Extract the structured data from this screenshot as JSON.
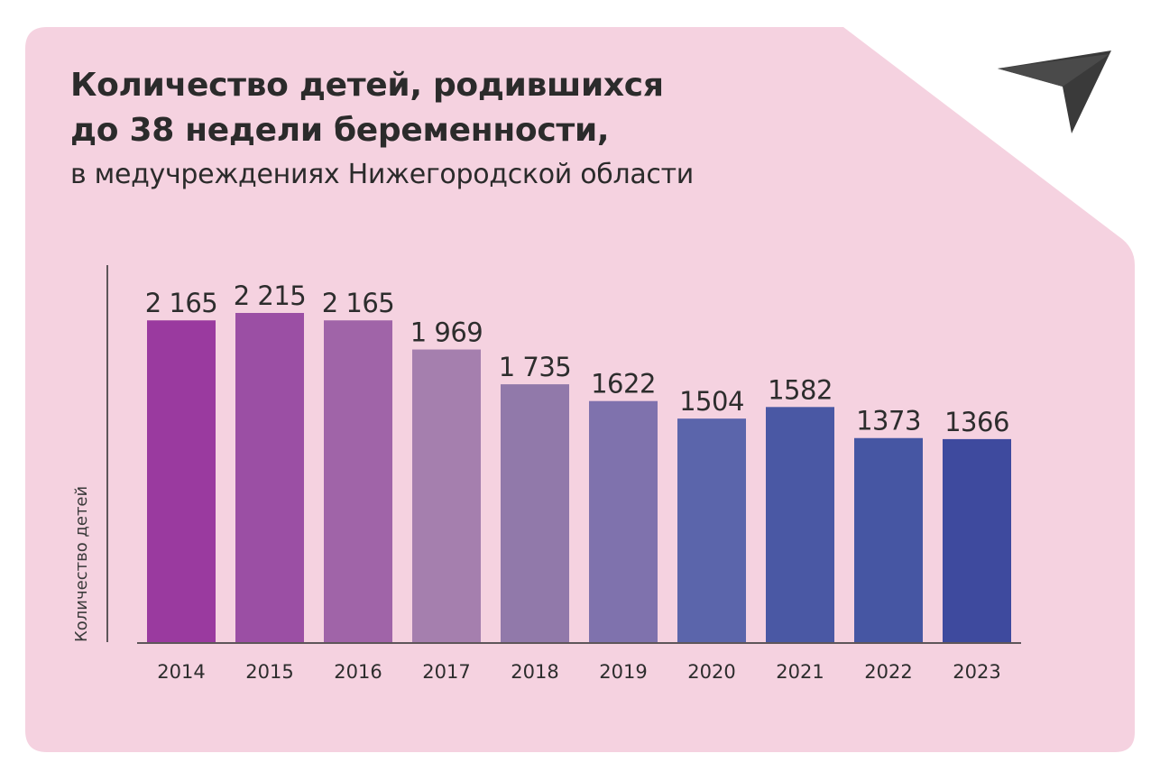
{
  "header": {
    "title_line1": "Количество детей, родившихся",
    "title_line2": "до 38 недели беременности,",
    "subtitle": "в медучреждениях Нижегородской области"
  },
  "logo": {
    "icon": "paper-plane-logo-icon",
    "color": "#3a3a3a"
  },
  "colors": {
    "background": "#f5d2e0"
  },
  "chart_data": {
    "type": "bar",
    "title": "Количество детей, родившихся до 38 недели беременности, в медучреждениях Нижегородской области",
    "xlabel": "",
    "ylabel": "Количество детей",
    "categories": [
      "2014",
      "2015",
      "2016",
      "2017",
      "2018",
      "2019",
      "2020",
      "2021",
      "2022",
      "2023"
    ],
    "values": [
      2165,
      2215,
      2165,
      1969,
      1735,
      1622,
      1504,
      1582,
      1373,
      1366
    ],
    "labels": [
      "2 165",
      "2 215",
      "2 165",
      "1 969",
      "1 735",
      "1622",
      "1504",
      "1582",
      "1373",
      "1366"
    ],
    "colors": [
      "#9a3a9f",
      "#9b4fa4",
      "#a064a8",
      "#a57fae",
      "#9179aa",
      "#7f72ad",
      "#5b65ab",
      "#4a58a4",
      "#4656a3",
      "#3e4a9e"
    ],
    "ylim": [
      0,
      2215
    ],
    "grid": false,
    "legend": "none"
  }
}
